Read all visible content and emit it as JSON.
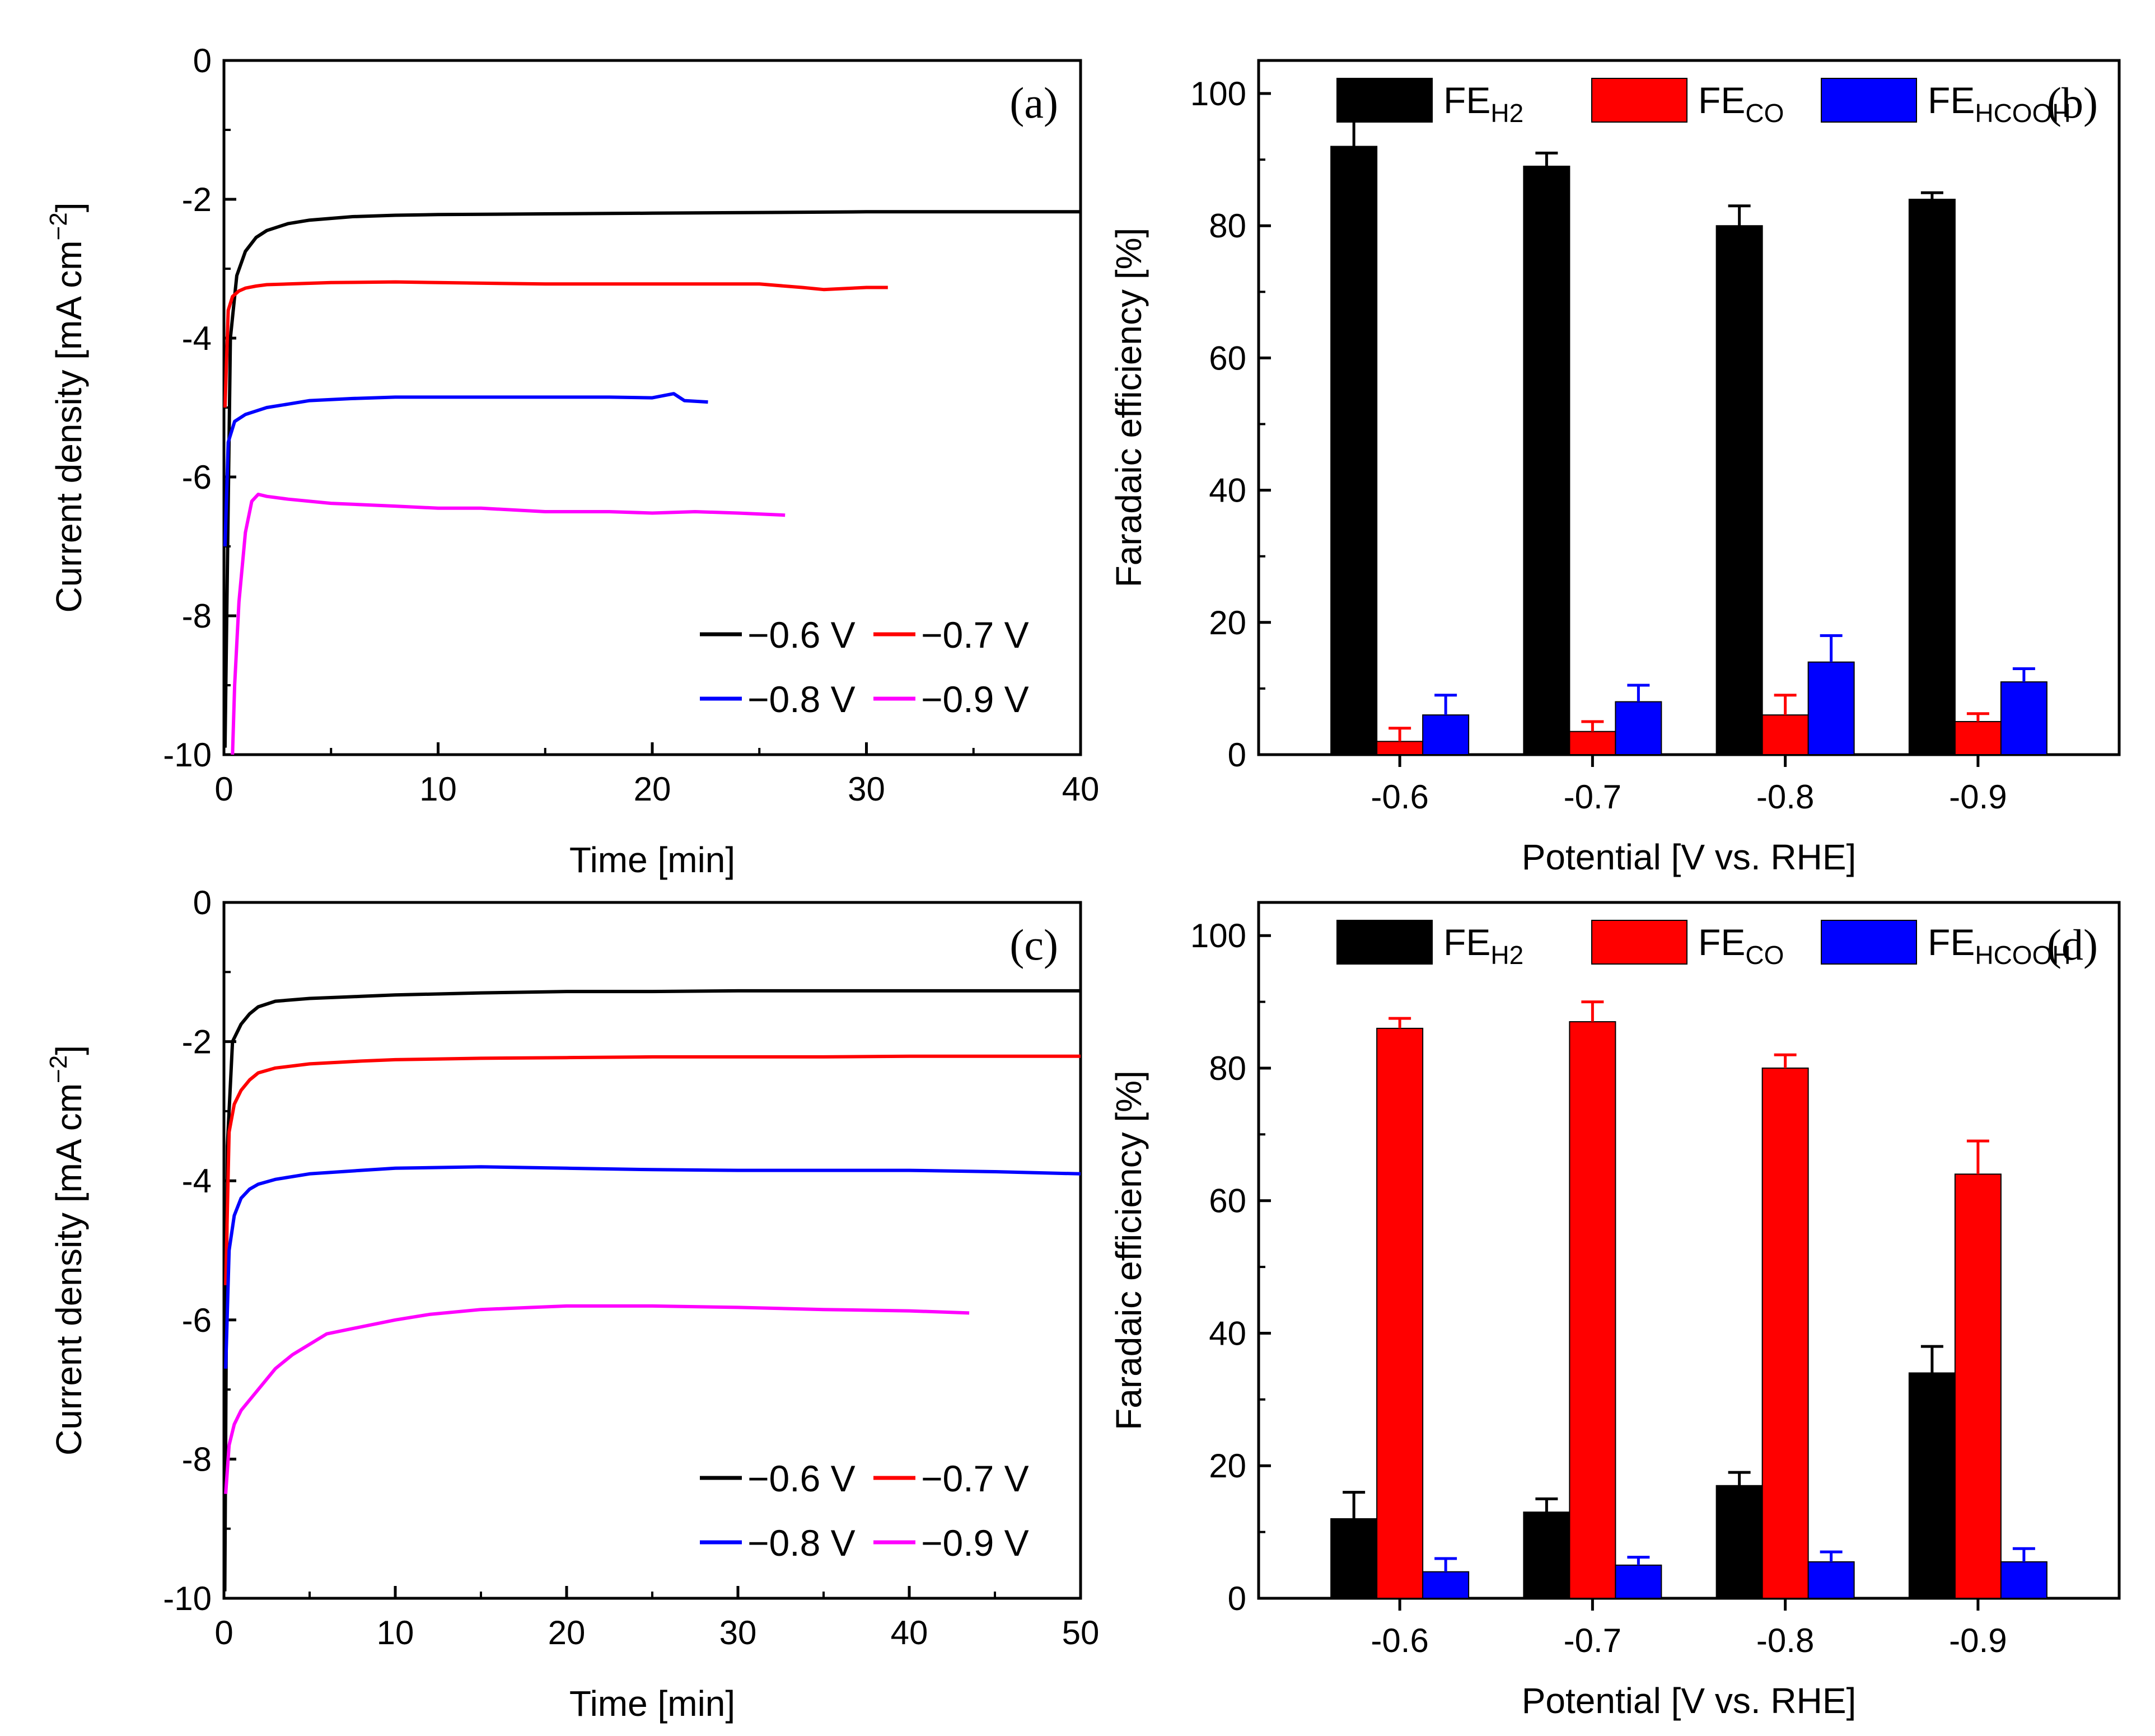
{
  "figure": {
    "panels": [
      {
        "id": "a",
        "panel_label": "(a)",
        "chart_data": {
          "type": "line",
          "title": "",
          "xlabel": "Time [min]",
          "ylabel": "Current density [mA cm",
          "ylabel_sup": "−2",
          "ylabel_tail": "]",
          "xlim": [
            0,
            40
          ],
          "ylim": [
            -10,
            0
          ],
          "xticks": [
            0,
            10,
            20,
            30,
            40
          ],
          "yticks": [
            0,
            -2,
            -4,
            -6,
            -8,
            -10
          ],
          "xtick_labels": [
            "0",
            "10",
            "20",
            "30",
            "40"
          ],
          "ytick_labels": [
            "0",
            "-2",
            "-4",
            "-6",
            "-8",
            "-10"
          ],
          "legend": "bottom-right",
          "series": [
            {
              "name": "−0.6 V",
              "color": "#000000",
              "x": [
                0.05,
                0.3,
                0.6,
                1.0,
                1.5,
                2,
                3,
                4,
                6,
                8,
                10,
                15,
                20,
                25,
                30,
                35,
                40
              ],
              "y": [
                -9.9,
                -4.0,
                -3.1,
                -2.75,
                -2.55,
                -2.45,
                -2.35,
                -2.3,
                -2.25,
                -2.23,
                -2.22,
                -2.21,
                -2.2,
                -2.19,
                -2.18,
                -2.18,
                -2.18
              ]
            },
            {
              "name": "−0.7 V",
              "color": "#ff0000",
              "x": [
                0.05,
                0.2,
                0.4,
                0.7,
                1.0,
                1.5,
                2,
                3,
                5,
                8,
                10,
                15,
                20,
                25,
                27,
                28,
                30,
                31
              ],
              "y": [
                -5.0,
                -3.6,
                -3.4,
                -3.32,
                -3.28,
                -3.25,
                -3.23,
                -3.22,
                -3.2,
                -3.19,
                -3.2,
                -3.22,
                -3.22,
                -3.22,
                -3.27,
                -3.3,
                -3.27,
                -3.27
              ]
            },
            {
              "name": "−0.8 V",
              "color": "#0000ff",
              "x": [
                0.05,
                0.2,
                0.5,
                1.0,
                1.5,
                2,
                3,
                4,
                6,
                8,
                10,
                12,
                15,
                18,
                20,
                21,
                21.5,
                22.6
              ],
              "y": [
                -7.0,
                -5.5,
                -5.2,
                -5.1,
                -5.05,
                -5.0,
                -4.95,
                -4.9,
                -4.87,
                -4.85,
                -4.85,
                -4.85,
                -4.85,
                -4.85,
                -4.86,
                -4.8,
                -4.9,
                -4.92
              ]
            },
            {
              "name": "−0.9 V",
              "color": "#ff00ff",
              "x": [
                0.4,
                0.5,
                0.7,
                1.0,
                1.3,
                1.6,
                2,
                3,
                5,
                8,
                10,
                12,
                15,
                18,
                20,
                22,
                24,
                26.2
              ],
              "y": [
                -10.0,
                -9.0,
                -7.8,
                -6.8,
                -6.35,
                -6.25,
                -6.28,
                -6.32,
                -6.38,
                -6.42,
                -6.45,
                -6.45,
                -6.5,
                -6.5,
                -6.52,
                -6.5,
                -6.52,
                -6.55
              ]
            }
          ]
        }
      },
      {
        "id": "b",
        "panel_label": "(b)",
        "chart_data": {
          "type": "bar",
          "title": "",
          "xlabel": "Potential [V vs. RHE]",
          "ylabel": "Faradaic efficiency [%]",
          "categories": [
            "-0.6",
            "-0.7",
            "-0.8",
            "-0.9"
          ],
          "ylim": [
            0,
            105
          ],
          "yticks": [
            0,
            20,
            40,
            60,
            80,
            100
          ],
          "ytick_labels": [
            "0",
            "20",
            "40",
            "60",
            "80",
            "100"
          ],
          "legend": "top",
          "series": [
            {
              "name": "FE",
              "sub": "H2",
              "color": "#000000",
              "values": [
                92,
                89,
                80,
                84
              ],
              "errors": [
                4,
                2,
                3,
                1
              ]
            },
            {
              "name": "FE",
              "sub": "CO",
              "color": "#ff0000",
              "values": [
                2,
                3.5,
                6,
                5
              ],
              "errors": [
                2,
                1.5,
                3,
                1.2
              ]
            },
            {
              "name": "FE",
              "sub": "HCOOH",
              "color": "#0000ff",
              "values": [
                6,
                8,
                14,
                11
              ],
              "errors": [
                3,
                2.5,
                4,
                2
              ]
            }
          ]
        }
      },
      {
        "id": "c",
        "panel_label": "(c)",
        "chart_data": {
          "type": "line",
          "title": "",
          "xlabel": "Time [min]",
          "ylabel": "Current density [mA cm",
          "ylabel_sup": "−2",
          "ylabel_tail": "]",
          "xlim": [
            0,
            50
          ],
          "ylim": [
            -10,
            0
          ],
          "xticks": [
            0,
            10,
            20,
            30,
            40,
            50
          ],
          "yticks": [
            0,
            -2,
            -4,
            -6,
            -8,
            -10
          ],
          "xtick_labels": [
            "0",
            "10",
            "20",
            "30",
            "40",
            "50"
          ],
          "ytick_labels": [
            "0",
            "-2",
            "-4",
            "-6",
            "-8",
            "-10"
          ],
          "legend": "bottom-right",
          "series": [
            {
              "name": "−0.6 V",
              "color": "#000000",
              "x": [
                0.05,
                0.2,
                0.5,
                1,
                1.5,
                2,
                3,
                5,
                8,
                10,
                15,
                20,
                25,
                30,
                35,
                40,
                45,
                50
              ],
              "y": [
                -9.9,
                -3.5,
                -2.0,
                -1.75,
                -1.6,
                -1.5,
                -1.42,
                -1.38,
                -1.35,
                -1.33,
                -1.3,
                -1.28,
                -1.28,
                -1.27,
                -1.27,
                -1.27,
                -1.27,
                -1.27
              ]
            },
            {
              "name": "−0.7 V",
              "color": "#ff0000",
              "x": [
                0.1,
                0.3,
                0.6,
                1,
                1.5,
                2,
                3,
                5,
                8,
                10,
                15,
                20,
                25,
                30,
                35,
                40,
                45,
                50
              ],
              "y": [
                -5.5,
                -3.3,
                -2.9,
                -2.7,
                -2.55,
                -2.45,
                -2.38,
                -2.32,
                -2.28,
                -2.26,
                -2.24,
                -2.23,
                -2.22,
                -2.22,
                -2.22,
                -2.21,
                -2.21,
                -2.21
              ]
            },
            {
              "name": "−0.8 V",
              "color": "#0000ff",
              "x": [
                0.1,
                0.3,
                0.6,
                1,
                1.5,
                2,
                3,
                5,
                8,
                10,
                15,
                20,
                25,
                30,
                35,
                40,
                45,
                50
              ],
              "y": [
                -6.7,
                -5.0,
                -4.5,
                -4.25,
                -4.12,
                -4.05,
                -3.98,
                -3.9,
                -3.85,
                -3.82,
                -3.8,
                -3.82,
                -3.84,
                -3.85,
                -3.85,
                -3.85,
                -3.87,
                -3.9
              ]
            },
            {
              "name": "−0.9 V",
              "color": "#ff00ff",
              "x": [
                0.1,
                0.3,
                0.6,
                1,
                2,
                3,
                4,
                5,
                6,
                8,
                10,
                12,
                15,
                18,
                20,
                25,
                30,
                35,
                40,
                43.5
              ],
              "y": [
                -8.5,
                -7.8,
                -7.5,
                -7.3,
                -7.0,
                -6.7,
                -6.5,
                -6.35,
                -6.2,
                -6.1,
                -6.0,
                -5.92,
                -5.85,
                -5.82,
                -5.8,
                -5.8,
                -5.82,
                -5.85,
                -5.87,
                -5.9
              ]
            }
          ]
        }
      },
      {
        "id": "d",
        "panel_label": "(d)",
        "chart_data": {
          "type": "bar",
          "title": "",
          "xlabel": "Potential [V vs. RHE]",
          "ylabel": "Faradaic efficiency [%]",
          "categories": [
            "-0.6",
            "-0.7",
            "-0.8",
            "-0.9"
          ],
          "ylim": [
            0,
            105
          ],
          "yticks": [
            0,
            20,
            40,
            60,
            80,
            100
          ],
          "ytick_labels": [
            "0",
            "20",
            "40",
            "60",
            "80",
            "100"
          ],
          "legend": "top",
          "series": [
            {
              "name": "FE",
              "sub": "H2",
              "color": "#000000",
              "values": [
                12,
                13,
                17,
                34
              ],
              "errors": [
                4,
                2,
                2,
                4
              ]
            },
            {
              "name": "FE",
              "sub": "CO",
              "color": "#ff0000",
              "values": [
                86,
                87,
                80,
                64
              ],
              "errors": [
                1.5,
                3,
                2,
                5
              ]
            },
            {
              "name": "FE",
              "sub": "HCOOH",
              "color": "#0000ff",
              "values": [
                4,
                5,
                5.5,
                5.5
              ],
              "errors": [
                2,
                1.2,
                1.5,
                2
              ]
            }
          ]
        }
      }
    ]
  }
}
